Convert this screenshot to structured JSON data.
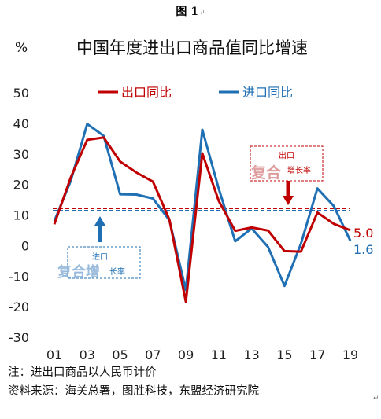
{
  "caption": "图 1",
  "caption_mark": "↵",
  "return_mark": "↵",
  "chart_data": {
    "type": "line",
    "title": "中国年度进出口商品值同比增速",
    "ylabel": "%",
    "xlabel": "",
    "x": [
      2001,
      2002,
      2003,
      2004,
      2005,
      2006,
      2007,
      2008,
      2009,
      2010,
      2011,
      2012,
      2013,
      2014,
      2015,
      2016,
      2017,
      2018,
      2019
    ],
    "xtick_values": [
      2001,
      2003,
      2005,
      2007,
      2009,
      2011,
      2013,
      2015,
      2017,
      2019
    ],
    "xtick_labels": [
      "01",
      "03",
      "05",
      "07",
      "09",
      "11",
      "13",
      "15",
      "17",
      "19"
    ],
    "ylim": [
      -30,
      50
    ],
    "yticks": [
      50,
      40,
      30,
      20,
      10,
      0,
      -10,
      -20,
      -30
    ],
    "grid": false,
    "legend_position": "top",
    "series": [
      {
        "name": "出口同比",
        "color": "#c00000",
        "values": [
          7,
          22.3,
          34.6,
          35.4,
          27.5,
          23.9,
          20.9,
          8.5,
          -18.4,
          30.2,
          14.6,
          4.8,
          5.9,
          4.9,
          -1.8,
          -2.0,
          10.8,
          7.1,
          5.0
        ]
      },
      {
        "name": "进口同比",
        "color": "#1f6fb5",
        "values": [
          8.0,
          21.2,
          39.8,
          35.9,
          16.8,
          16.7,
          15.4,
          8.3,
          -14.6,
          37.9,
          18.6,
          1.4,
          5.6,
          -0.5,
          -13.2,
          0.6,
          18.7,
          12.9,
          1.6
        ]
      }
    ],
    "end_labels": [
      {
        "series": "出口同比",
        "text": "5.0"
      },
      {
        "series": "进口同比",
        "text": "1.6"
      }
    ],
    "reference_lines": [
      {
        "series": "出口同比",
        "value": 12.2,
        "style": "dashed",
        "color": "#c00000"
      },
      {
        "series": "进口同比",
        "value": 11.4,
        "style": "dashed",
        "color": "#1f6fb5"
      }
    ],
    "annotations": [
      {
        "id": "export",
        "color": "#c00000",
        "line1": "出口",
        "stamp": "复合",
        "line2": "增长率"
      },
      {
        "id": "import",
        "color": "#1f6fb5",
        "line1": "进口",
        "stamp": "复合增",
        "line2": "长率"
      }
    ]
  },
  "notes": {
    "line1": "注：进出口商品以人民币计价",
    "line2": "资料来源：海关总署，图胜科技，东盟经济研究院"
  }
}
